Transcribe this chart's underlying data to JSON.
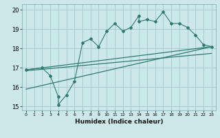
{
  "title": "",
  "xlabel": "Humidex (Indice chaleur)",
  "bg_color": "#cce8e8",
  "grid_color": "#aacccc",
  "line_color": "#2e7b6e",
  "xlim": [
    -0.5,
    23.5
  ],
  "ylim": [
    14.8,
    20.3
  ],
  "xticks": [
    0,
    1,
    2,
    3,
    4,
    5,
    6,
    7,
    8,
    9,
    10,
    11,
    12,
    13,
    14,
    15,
    16,
    17,
    18,
    19,
    20,
    21,
    22,
    23
  ],
  "yticks": [
    15,
    16,
    17,
    18,
    19,
    20
  ],
  "scatter_x": [
    0,
    2,
    3,
    4,
    4,
    5,
    6,
    7,
    8,
    9,
    10,
    11,
    12,
    13,
    14,
    14,
    15,
    16,
    17,
    18,
    19,
    20,
    21,
    22,
    23
  ],
  "scatter_y": [
    16.9,
    17.0,
    16.6,
    15.5,
    15.1,
    15.6,
    16.3,
    18.3,
    18.5,
    18.1,
    18.9,
    19.3,
    18.9,
    19.1,
    19.7,
    19.4,
    19.5,
    19.4,
    19.9,
    19.3,
    19.3,
    19.1,
    18.7,
    18.2,
    18.1
  ],
  "line1_x": [
    0,
    23
  ],
  "line1_y": [
    16.9,
    18.1
  ],
  "line2_x": [
    0,
    23
  ],
  "line2_y": [
    16.85,
    17.75
  ],
  "line3_x": [
    0,
    23
  ],
  "line3_y": [
    15.9,
    18.1
  ]
}
